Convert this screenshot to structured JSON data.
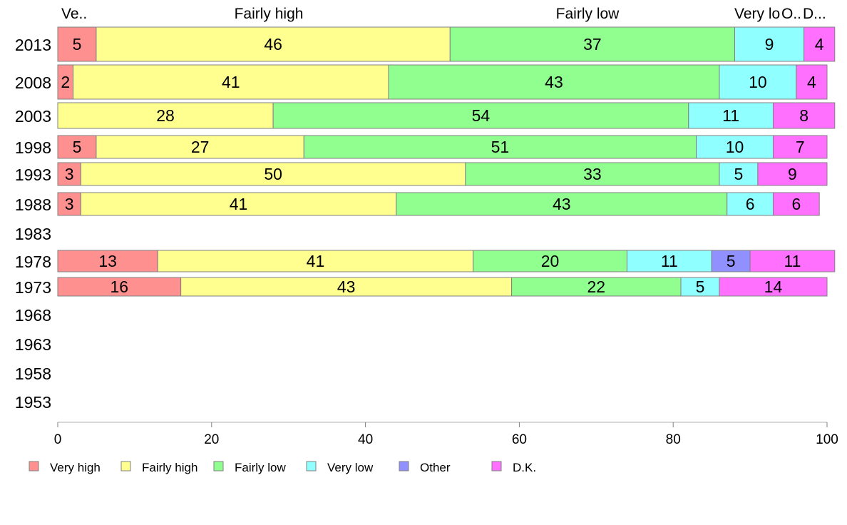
{
  "chart_data": {
    "type": "bar",
    "orientation": "horizontal",
    "stacked": true,
    "categories": [
      "2013",
      "2008",
      "2003",
      "1998",
      "1993",
      "1988",
      "1983",
      "1978",
      "1973",
      "1968",
      "1963",
      "1958",
      "1953"
    ],
    "series": [
      {
        "name": "Very high",
        "color": "#ff9090",
        "values": [
          5,
          2,
          null,
          5,
          3,
          3,
          null,
          13,
          16,
          null,
          null,
          null,
          null
        ]
      },
      {
        "name": "Fairly high",
        "color": "#ffff90",
        "values": [
          46,
          41,
          28,
          27,
          50,
          41,
          null,
          41,
          43,
          null,
          null,
          null,
          null
        ]
      },
      {
        "name": "Fairly low",
        "color": "#90ff90",
        "values": [
          37,
          43,
          54,
          51,
          33,
          43,
          null,
          20,
          22,
          null,
          null,
          null,
          null
        ]
      },
      {
        "name": "Very low",
        "color": "#90ffff",
        "values": [
          9,
          10,
          11,
          10,
          5,
          6,
          null,
          11,
          5,
          null,
          null,
          null,
          null
        ]
      },
      {
        "name": "Other",
        "color": "#9090ff",
        "values": [
          null,
          null,
          null,
          null,
          null,
          null,
          null,
          5,
          null,
          null,
          null,
          null,
          null
        ]
      },
      {
        "name": "D.K.",
        "color": "#ff70ff",
        "values": [
          4,
          4,
          8,
          7,
          9,
          6,
          null,
          11,
          14,
          null,
          null,
          null,
          null
        ]
      }
    ],
    "top_labels": [
      "Ve..",
      "Fairly high",
      "Fairly low",
      "Very lo",
      "O..",
      "D..."
    ],
    "xlim": [
      0,
      100
    ],
    "xticks": [
      0,
      20,
      40,
      60,
      80,
      100
    ],
    "grid": false,
    "legend_position": "bottom"
  }
}
